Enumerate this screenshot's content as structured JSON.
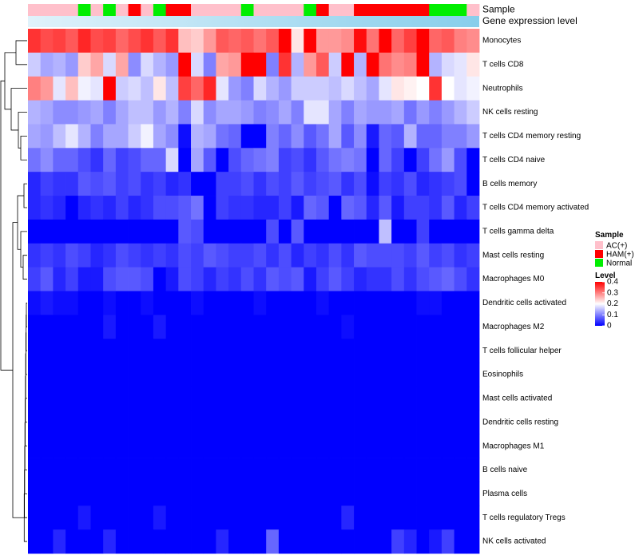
{
  "colors": {
    "low": "#0000ff",
    "mid": "#ffffff",
    "high": "#ff0000",
    "AC(+)": "#ffc0cb",
    "HAM(+)": "#ff0000",
    "Normal": "#00ee00",
    "gene_bar_start": "#e0f2fb",
    "gene_bar_end": "#87ceeb",
    "dendrogram": "#000000"
  },
  "chart_data": {
    "type": "heatmap",
    "title": "",
    "annotation_labels": [
      "Sample",
      "Gene expression level"
    ],
    "legend": {
      "sample_title": "Sample",
      "sample_entries": [
        "AC(+)",
        "HAM(+)",
        "Normal"
      ],
      "level_title": "Level",
      "level_ticks": [
        "0.4",
        "0.3",
        "0.2",
        "0.1",
        "0"
      ],
      "level_range": [
        0,
        0.4
      ],
      "placement": "right"
    },
    "sample_groups": [
      "AC(+)",
      "AC(+)",
      "AC(+)",
      "AC(+)",
      "Normal",
      "AC(+)",
      "Normal",
      "AC(+)",
      "HAM(+)",
      "AC(+)",
      "Normal",
      "HAM(+)",
      "HAM(+)",
      "AC(+)",
      "AC(+)",
      "AC(+)",
      "AC(+)",
      "Normal",
      "AC(+)",
      "AC(+)",
      "AC(+)",
      "AC(+)",
      "Normal",
      "HAM(+)",
      "AC(+)",
      "AC(+)",
      "HAM(+)",
      "HAM(+)",
      "HAM(+)",
      "HAM(+)",
      "HAM(+)",
      "HAM(+)",
      "Normal",
      "Normal",
      "Normal",
      "AC(+)"
    ],
    "rows": [
      "Monocytes",
      "T cells CD8",
      "Neutrophils",
      "NK cells resting",
      "T cells CD4 memory resting",
      "T cells CD4 naive",
      "B cells memory",
      "T cells CD4 memory activated",
      "T cells gamma delta",
      "Mast cells resting",
      "Macrophages M0",
      "Dendritic cells activated",
      "Macrophages M2",
      "T cells follicular helper",
      "Eosinophils",
      "Mast cells activated",
      "Dendritic cells resting",
      "Macrophages M1",
      "B cells naive",
      "Plasma cells",
      "T cells regulatory  Tregs",
      "NK cells activated"
    ],
    "values": [
      [
        0.36,
        0.34,
        0.35,
        0.33,
        0.37,
        0.34,
        0.35,
        0.32,
        0.34,
        0.36,
        0.33,
        0.36,
        0.25,
        0.24,
        0.28,
        0.33,
        0.32,
        0.33,
        0.31,
        0.33,
        0.4,
        0.22,
        0.4,
        0.28,
        0.28,
        0.29,
        0.39,
        0.31,
        0.4,
        0.32,
        0.35,
        0.4,
        0.32,
        0.33,
        0.3,
        0.29
      ],
      [
        0.16,
        0.13,
        0.14,
        0.12,
        0.24,
        0.27,
        0.17,
        0.27,
        0.11,
        0.17,
        0.14,
        0.12,
        0.4,
        0.17,
        0.1,
        0.27,
        0.28,
        0.4,
        0.4,
        0.1,
        0.36,
        0.14,
        0.28,
        0.33,
        0.16,
        0.4,
        0.14,
        0.4,
        0.31,
        0.29,
        0.3,
        0.4,
        0.14,
        0.17,
        0.18,
        0.22
      ],
      [
        0.3,
        0.28,
        0.18,
        0.25,
        0.19,
        0.18,
        0.4,
        0.16,
        0.17,
        0.15,
        0.22,
        0.15,
        0.35,
        0.32,
        0.37,
        0.18,
        0.12,
        0.1,
        0.17,
        0.14,
        0.12,
        0.16,
        0.16,
        0.16,
        0.15,
        0.17,
        0.15,
        0.13,
        0.18,
        0.22,
        0.21,
        0.2,
        0.36,
        0.2,
        0.18,
        0.19
      ],
      [
        0.14,
        0.13,
        0.11,
        0.11,
        0.12,
        0.13,
        0.1,
        0.13,
        0.15,
        0.15,
        0.12,
        0.14,
        0.1,
        0.17,
        0.11,
        0.13,
        0.13,
        0.12,
        0.1,
        0.11,
        0.13,
        0.1,
        0.18,
        0.18,
        0.13,
        0.1,
        0.13,
        0.12,
        0.12,
        0.13,
        0.09,
        0.12,
        0.1,
        0.12,
        0.14,
        0.16
      ],
      [
        0.13,
        0.12,
        0.15,
        0.18,
        0.14,
        0.1,
        0.13,
        0.13,
        0.16,
        0.19,
        0.13,
        0.11,
        0.01,
        0.14,
        0.13,
        0.09,
        0.08,
        0.0,
        0.0,
        0.1,
        0.08,
        0.11,
        0.07,
        0.09,
        0.13,
        0.07,
        0.11,
        0.02,
        0.08,
        0.07,
        0.14,
        0.08,
        0.08,
        0.1,
        0.1,
        0.12
      ],
      [
        0.09,
        0.11,
        0.08,
        0.08,
        0.06,
        0.04,
        0.08,
        0.05,
        0.06,
        0.08,
        0.08,
        0.17,
        0.0,
        0.13,
        0.07,
        0.0,
        0.06,
        0.08,
        0.09,
        0.1,
        0.05,
        0.06,
        0.04,
        0.07,
        0.09,
        0.1,
        0.09,
        0.0,
        0.08,
        0.05,
        0.0,
        0.05,
        0.09,
        0.12,
        0.06,
        0.0
      ],
      [
        0.03,
        0.05,
        0.04,
        0.04,
        0.07,
        0.06,
        0.07,
        0.05,
        0.06,
        0.04,
        0.05,
        0.03,
        0.04,
        0.0,
        0.0,
        0.05,
        0.05,
        0.06,
        0.04,
        0.06,
        0.05,
        0.07,
        0.05,
        0.06,
        0.07,
        0.04,
        0.06,
        0.01,
        0.05,
        0.04,
        0.06,
        0.03,
        0.04,
        0.05,
        0.06,
        0.0
      ],
      [
        0.03,
        0.04,
        0.03,
        0.0,
        0.03,
        0.04,
        0.03,
        0.05,
        0.03,
        0.04,
        0.06,
        0.06,
        0.07,
        0.09,
        0.0,
        0.05,
        0.04,
        0.04,
        0.03,
        0.03,
        0.05,
        0.02,
        0.08,
        0.07,
        0.0,
        0.08,
        0.07,
        0.03,
        0.07,
        0.02,
        0.05,
        0.05,
        0.04,
        0.07,
        0.03,
        0.05
      ],
      [
        0.0,
        0.0,
        0.0,
        0.0,
        0.0,
        0.0,
        0.0,
        0.0,
        0.0,
        0.0,
        0.0,
        0.0,
        0.07,
        0.06,
        0.0,
        0.0,
        0.0,
        0.0,
        0.0,
        0.06,
        0.0,
        0.07,
        0.0,
        0.0,
        0.0,
        0.0,
        0.0,
        0.0,
        0.15,
        0.0,
        0.0,
        0.05,
        0.0,
        0.0,
        0.0,
        0.0
      ],
      [
        0.04,
        0.05,
        0.04,
        0.06,
        0.05,
        0.03,
        0.04,
        0.06,
        0.05,
        0.04,
        0.05,
        0.04,
        0.06,
        0.05,
        0.07,
        0.06,
        0.05,
        0.05,
        0.06,
        0.04,
        0.06,
        0.03,
        0.05,
        0.04,
        0.06,
        0.04,
        0.07,
        0.06,
        0.06,
        0.06,
        0.05,
        0.07,
        0.05,
        0.06,
        0.04,
        0.05
      ],
      [
        0.05,
        0.07,
        0.03,
        0.05,
        0.02,
        0.02,
        0.06,
        0.07,
        0.07,
        0.06,
        0.0,
        0.02,
        0.06,
        0.05,
        0.03,
        0.05,
        0.04,
        0.06,
        0.04,
        0.07,
        0.06,
        0.07,
        0.02,
        0.05,
        0.07,
        0.05,
        0.03,
        0.04,
        0.04,
        0.06,
        0.04,
        0.06,
        0.07,
        0.08,
        0.06,
        0.04
      ],
      [
        0.01,
        0.02,
        0.01,
        0.01,
        0.0,
        0.0,
        0.01,
        0.0,
        0.0,
        0.01,
        0.0,
        0.0,
        0.0,
        0.01,
        0.0,
        0.0,
        0.0,
        0.0,
        0.01,
        0.0,
        0.0,
        0.0,
        0.0,
        0.01,
        0.0,
        0.0,
        0.0,
        0.0,
        0.0,
        0.0,
        0.0,
        0.01,
        0.01,
        0.0,
        0.0,
        0.0
      ],
      [
        0.0,
        0.0,
        0.0,
        0.0,
        0.0,
        0.0,
        0.02,
        0.0,
        0.0,
        0.0,
        0.02,
        0.0,
        0.0,
        0.0,
        0.0,
        0.0,
        0.0,
        0.0,
        0.0,
        0.0,
        0.0,
        0.0,
        0.0,
        0.0,
        0.0,
        0.01,
        0.0,
        0.0,
        0.0,
        0.0,
        0.0,
        0.0,
        0.0,
        0.0,
        0.0,
        0.0
      ],
      [
        0.0,
        0.0,
        0.0,
        0.0,
        0.0,
        0.0,
        0.0,
        0.0,
        0.0,
        0.0,
        0.0,
        0.0,
        0.0,
        0.0,
        0.0,
        0.0,
        0.0,
        0.0,
        0.0,
        0.0,
        0.0,
        0.0,
        0.0,
        0.0,
        0.0,
        0.0,
        0.0,
        0.0,
        0.0,
        0.0,
        0.0,
        0.0,
        0.0,
        0.0,
        0.0,
        0.0
      ],
      [
        0.0,
        0.0,
        0.0,
        0.0,
        0.0,
        0.0,
        0.0,
        0.0,
        0.0,
        0.0,
        0.0,
        0.0,
        0.0,
        0.0,
        0.0,
        0.0,
        0.0,
        0.0,
        0.0,
        0.0,
        0.0,
        0.0,
        0.0,
        0.0,
        0.0,
        0.0,
        0.0,
        0.0,
        0.0,
        0.0,
        0.0,
        0.0,
        0.0,
        0.0,
        0.0,
        0.0
      ],
      [
        0.0,
        0.0,
        0.0,
        0.0,
        0.0,
        0.0,
        0.0,
        0.0,
        0.0,
        0.0,
        0.0,
        0.0,
        0.0,
        0.0,
        0.0,
        0.0,
        0.0,
        0.0,
        0.0,
        0.0,
        0.0,
        0.0,
        0.0,
        0.0,
        0.0,
        0.0,
        0.0,
        0.0,
        0.0,
        0.0,
        0.0,
        0.0,
        0.0,
        0.0,
        0.0,
        0.0
      ],
      [
        0.0,
        0.0,
        0.0,
        0.0,
        0.0,
        0.0,
        0.0,
        0.0,
        0.0,
        0.0,
        0.0,
        0.0,
        0.0,
        0.0,
        0.0,
        0.0,
        0.0,
        0.0,
        0.0,
        0.0,
        0.0,
        0.0,
        0.0,
        0.0,
        0.0,
        0.0,
        0.0,
        0.0,
        0.0,
        0.0,
        0.0,
        0.0,
        0.0,
        0.0,
        0.0,
        0.0
      ],
      [
        0.0,
        0.0,
        0.0,
        0.0,
        0.0,
        0.0,
        0.0,
        0.0,
        0.0,
        0.0,
        0.0,
        0.0,
        0.0,
        0.0,
        0.0,
        0.0,
        0.0,
        0.0,
        0.0,
        0.0,
        0.0,
        0.0,
        0.0,
        0.0,
        0.0,
        0.0,
        0.0,
        0.0,
        0.0,
        0.0,
        0.0,
        0.0,
        0.0,
        0.0,
        0.0,
        0.0
      ],
      [
        0.0,
        0.0,
        0.0,
        0.0,
        0.0,
        0.0,
        0.0,
        0.0,
        0.0,
        0.0,
        0.0,
        0.0,
        0.0,
        0.0,
        0.0,
        0.0,
        0.0,
        0.0,
        0.0,
        0.0,
        0.0,
        0.0,
        0.0,
        0.0,
        0.0,
        0.0,
        0.0,
        0.0,
        0.0,
        0.0,
        0.0,
        0.0,
        0.0,
        0.0,
        0.0,
        0.0
      ],
      [
        0.0,
        0.0,
        0.0,
        0.0,
        0.0,
        0.0,
        0.0,
        0.0,
        0.0,
        0.0,
        0.0,
        0.0,
        0.0,
        0.0,
        0.0,
        0.0,
        0.0,
        0.0,
        0.0,
        0.0,
        0.0,
        0.0,
        0.0,
        0.0,
        0.0,
        0.0,
        0.0,
        0.0,
        0.0,
        0.0,
        0.0,
        0.0,
        0.0,
        0.0,
        0.0,
        0.0
      ],
      [
        0.0,
        0.0,
        0.0,
        0.0,
        0.02,
        0.0,
        0.0,
        0.0,
        0.0,
        0.0,
        0.02,
        0.0,
        0.0,
        0.0,
        0.0,
        0.0,
        0.0,
        0.0,
        0.0,
        0.0,
        0.0,
        0.0,
        0.0,
        0.0,
        0.0,
        0.03,
        0.0,
        0.0,
        0.0,
        0.0,
        0.0,
        0.0,
        0.0,
        0.0,
        0.0,
        0.0
      ],
      [
        0.0,
        0.0,
        0.03,
        0.0,
        0.0,
        0.0,
        0.03,
        0.0,
        0.0,
        0.0,
        0.0,
        0.0,
        0.0,
        0.0,
        0.0,
        0.03,
        0.0,
        0.0,
        0.0,
        0.08,
        0.0,
        0.0,
        0.0,
        0.0,
        0.0,
        0.0,
        0.0,
        0.0,
        0.0,
        0.05,
        0.03,
        0.0,
        0.02,
        0.05,
        0.0,
        0.0
      ]
    ],
    "column_dendrogram": "none",
    "row_dendrogram": "left"
  }
}
